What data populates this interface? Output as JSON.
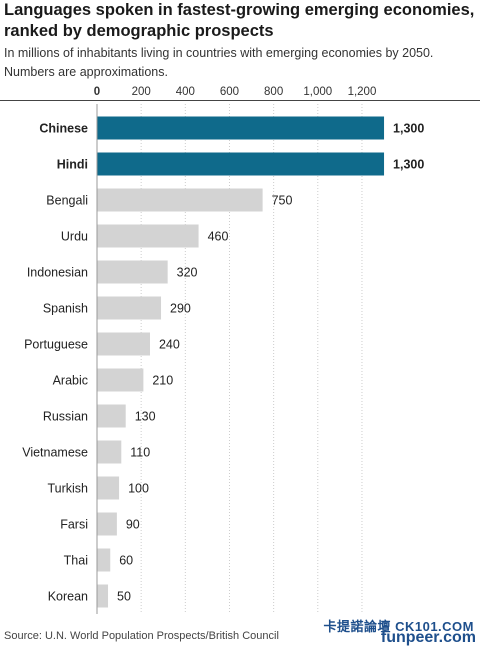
{
  "chart_data": {
    "type": "bar",
    "orientation": "horizontal",
    "title": "Languages spoken in fastest-growing emerging economies, ranked by demographic prospects",
    "subtitle": "In millions of inhabitants living in countries with emerging economies by 2050. Numbers are approximations.",
    "categories": [
      "Chinese",
      "Hindi",
      "Bengali",
      "Urdu",
      "Indonesian",
      "Spanish",
      "Portuguese",
      "Arabic",
      "Russian",
      "Vietnamese",
      "Turkish",
      "Farsi",
      "Thai",
      "Korean"
    ],
    "values": [
      1300,
      1300,
      750,
      460,
      320,
      290,
      240,
      210,
      130,
      110,
      100,
      90,
      60,
      50
    ],
    "value_labels": [
      "1,300",
      "1,300",
      "750",
      "460",
      "320",
      "290",
      "240",
      "210",
      "130",
      "110",
      "100",
      "90",
      "60",
      "50"
    ],
    "highlighted": [
      true,
      true,
      false,
      false,
      false,
      false,
      false,
      false,
      false,
      false,
      false,
      false,
      false,
      false
    ],
    "x_ticks": [
      0,
      200,
      400,
      600,
      800,
      1000,
      1200
    ],
    "x_tick_labels": [
      "0",
      "200",
      "400",
      "600",
      "800",
      "1,000",
      "1,200"
    ],
    "xlim": [
      0,
      1300
    ],
    "xlabel": "",
    "ylabel": "",
    "grid": true,
    "colors": {
      "highlight": "#0f6a8b",
      "default": "#d3d3d3",
      "grid": "#cccccc"
    }
  },
  "source": "Source: U.N. World Population Prospects/British Council",
  "watermark": "卡提諾論壇 CK101.COM",
  "watermark_site": "funpeer.com"
}
